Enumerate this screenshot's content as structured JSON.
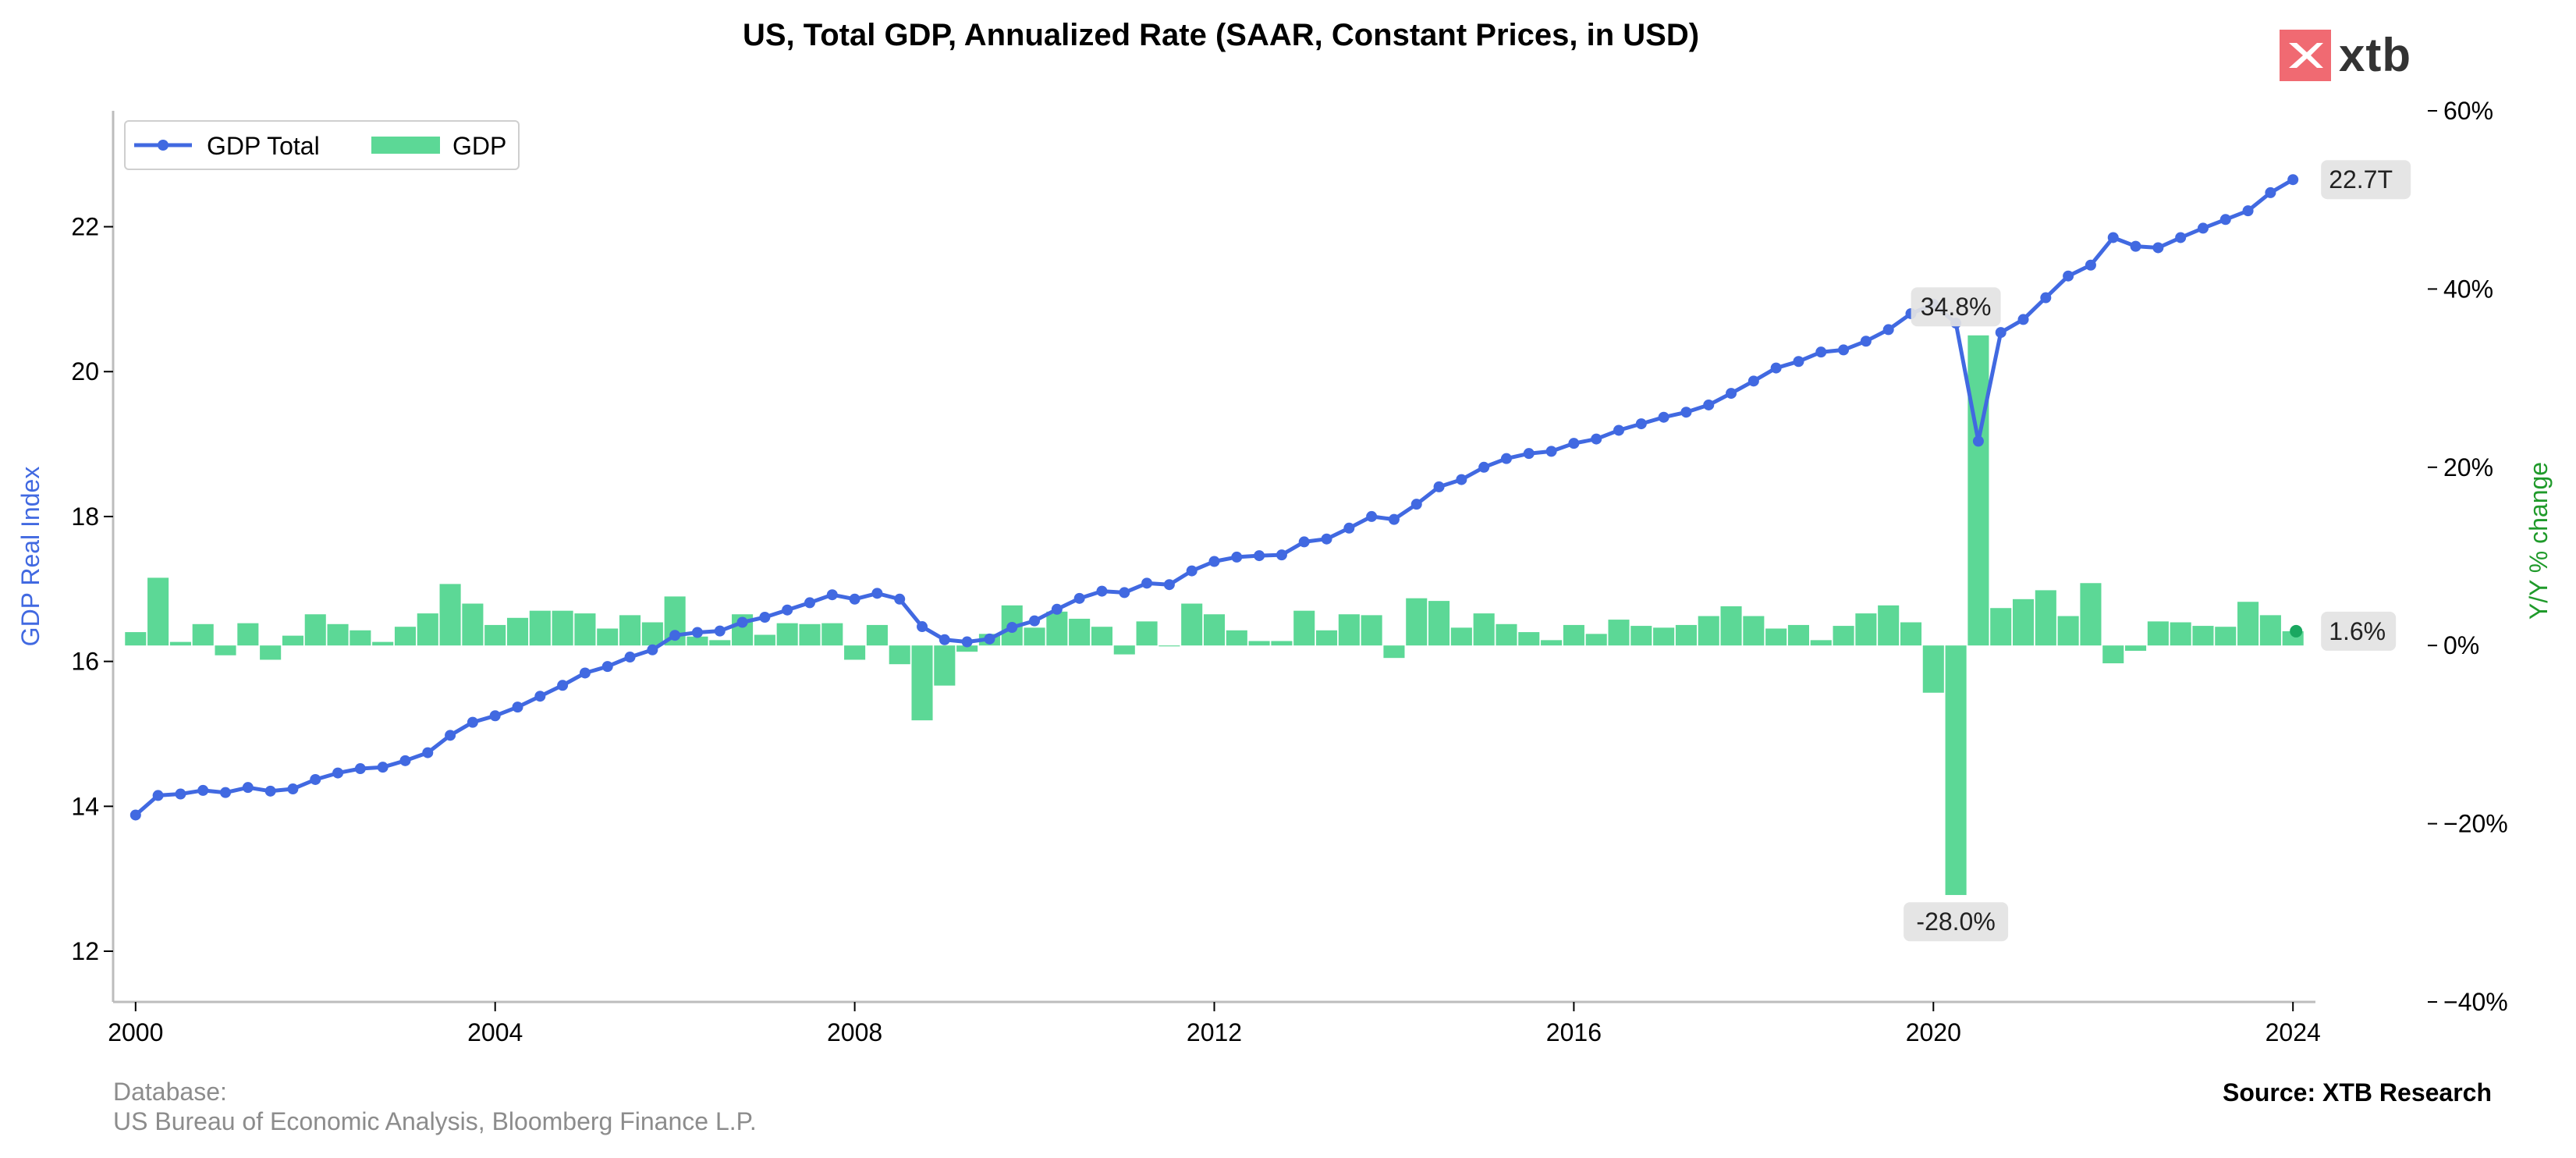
{
  "chart_data": {
    "type": "line",
    "title": "US, Total GDP, Annualized Rate (SAAR, Constant Prices, in USD)",
    "ylabel_left": "GDP Real Index",
    "ylabel_right": "Y/Y % change",
    "left_axis": {
      "range": [
        11.3,
        23.6
      ],
      "ticks": [
        "12",
        "14",
        "16",
        "18",
        "20",
        "22"
      ]
    },
    "right_axis": {
      "range": [
        -40,
        60
      ],
      "ticks": [
        "−40%",
        "−20%",
        "0%",
        "20%",
        "40%",
        "60%"
      ]
    },
    "x_axis": {
      "range": [
        1999.75,
        2024.25
      ],
      "ticks": [
        "2000",
        "2004",
        "2008",
        "2012",
        "2016",
        "2020",
        "2024"
      ]
    },
    "legend": {
      "placement": "top-left",
      "items": [
        {
          "label": "GDP Total",
          "kind": "line",
          "color": "#4169e1"
        },
        {
          "label": "GDP",
          "kind": "bar",
          "color": "#5cd896"
        }
      ]
    },
    "series": [
      {
        "name": "GDP Total",
        "axis": "left",
        "color": "#4169e1",
        "x_start": 2000.0,
        "x_step": 0.25,
        "values": [
          13.88,
          14.15,
          14.17,
          14.22,
          14.19,
          14.26,
          14.21,
          14.24,
          14.37,
          14.46,
          14.52,
          14.54,
          14.63,
          14.74,
          14.98,
          15.16,
          15.25,
          15.37,
          15.52,
          15.67,
          15.84,
          15.93,
          16.06,
          16.16,
          16.36,
          16.4,
          16.42,
          16.54,
          16.61,
          16.71,
          16.81,
          16.92,
          16.86,
          16.94,
          16.86,
          16.48,
          16.3,
          16.27,
          16.31,
          16.47,
          16.56,
          16.72,
          16.87,
          16.97,
          16.95,
          17.08,
          17.06,
          17.25,
          17.38,
          17.44,
          17.46,
          17.47,
          17.65,
          17.69,
          17.84,
          18.0,
          17.96,
          18.17,
          18.41,
          18.51,
          18.68,
          18.8,
          18.87,
          18.9,
          19.01,
          19.07,
          19.19,
          19.28,
          19.37,
          19.44,
          19.54,
          19.7,
          19.87,
          20.05,
          20.14,
          20.27,
          20.3,
          20.42,
          20.58,
          20.8,
          20.93,
          20.67,
          19.04,
          20.54,
          20.72,
          21.02,
          21.32,
          21.47,
          21.85,
          21.73,
          21.71,
          21.85,
          21.98,
          22.1,
          22.22,
          22.47,
          22.65
        ]
      },
      {
        "name": "GDP",
        "axis": "right",
        "color": "#5cd896",
        "x_start": 2000.0,
        "x_step": 0.25,
        "values": [
          1.5,
          7.6,
          0.4,
          2.4,
          -1.1,
          2.5,
          -1.6,
          1.1,
          3.5,
          2.4,
          1.7,
          0.4,
          2.1,
          3.6,
          6.9,
          4.7,
          2.3,
          3.1,
          3.9,
          3.9,
          3.6,
          1.9,
          3.4,
          2.6,
          5.5,
          1.0,
          0.6,
          3.5,
          1.2,
          2.5,
          2.4,
          2.5,
          -1.6,
          2.3,
          -2.1,
          -8.4,
          -4.5,
          -0.7,
          1.3,
          4.5,
          2.0,
          3.8,
          3.0,
          2.1,
          -1.0,
          2.7,
          -0.1,
          4.7,
          3.5,
          1.7,
          0.5,
          0.5,
          3.9,
          1.7,
          3.5,
          3.4,
          -1.4,
          5.3,
          5.0,
          2.0,
          3.6,
          2.4,
          1.5,
          0.6,
          2.3,
          1.3,
          2.9,
          2.2,
          2.0,
          2.3,
          3.3,
          4.4,
          3.3,
          1.9,
          2.3,
          0.6,
          2.2,
          3.6,
          4.5,
          2.6,
          -5.3,
          -28.0,
          34.8,
          4.2,
          5.2,
          6.2,
          3.3,
          7.0,
          -2.0,
          -0.6,
          2.7,
          2.6,
          2.2,
          2.1,
          4.9,
          3.4,
          1.6
        ]
      }
    ],
    "annotations": [
      {
        "text": "22.7T",
        "x": 2024.0,
        "y": 22.65,
        "axis": "left"
      },
      {
        "text": "34.8%",
        "x": 2020.25,
        "y": 38.0,
        "axis": "right"
      },
      {
        "text": "-28.0%",
        "x": 2020.25,
        "y": -31.0,
        "axis": "right"
      },
      {
        "text": "1.6%",
        "x": 2024.0,
        "y": 1.6,
        "axis": "right"
      }
    ]
  },
  "footer": {
    "database_label": "Database:",
    "database_sources": "US Bureau of Economic Analysis, Bloomberg Finance L.P.",
    "source": "Source: XTB Research"
  },
  "logo": {
    "text": "xtb",
    "color": "#f06a72"
  }
}
